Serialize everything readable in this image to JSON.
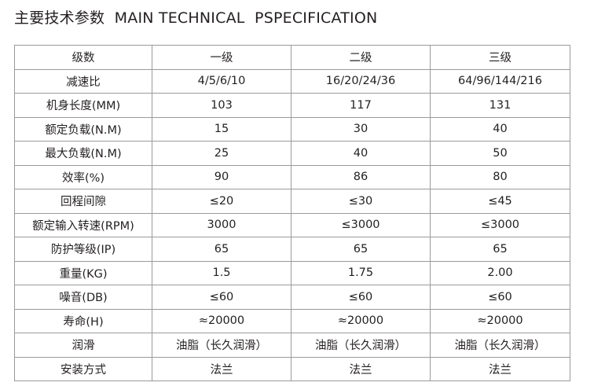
{
  "header": {
    "title": "主要技术参数  MAIN TECHNICAL  PSPECIFICATION"
  },
  "table": {
    "rows": [
      [
        "级数",
        "一级",
        "二级",
        "三级"
      ],
      [
        "减速比",
        "4/5/6/10",
        "16/20/24/36",
        "64/96/144/216"
      ],
      [
        "机身长度(MM)",
        "103",
        "117",
        "131"
      ],
      [
        "额定负载(N.M)",
        "15",
        "30",
        "40"
      ],
      [
        "最大负载(N.M)",
        "25",
        "40",
        "50"
      ],
      [
        "效率(%)",
        "90",
        "86",
        "80"
      ],
      [
        "回程间隙",
        "≤20",
        "≤30",
        "≤45"
      ],
      [
        "额定输入转速(RPM)",
        "3000",
        "≤3000",
        "≤3000"
      ],
      [
        "防护等级(IP)",
        "65",
        "65",
        "65"
      ],
      [
        "重量(KG)",
        "1.5",
        "1.75",
        "2.00"
      ],
      [
        "噪音(DB)",
        "≤60",
        "≤60",
        "≤60"
      ],
      [
        "寿命(H)",
        "≈20000",
        "≈20000",
        "≈20000"
      ],
      [
        "润滑",
        "油脂（长久润滑）",
        "油脂（长久润滑）",
        "油脂（长久润滑）"
      ],
      [
        "安装方式",
        "法兰",
        "法兰",
        "法兰"
      ]
    ]
  }
}
